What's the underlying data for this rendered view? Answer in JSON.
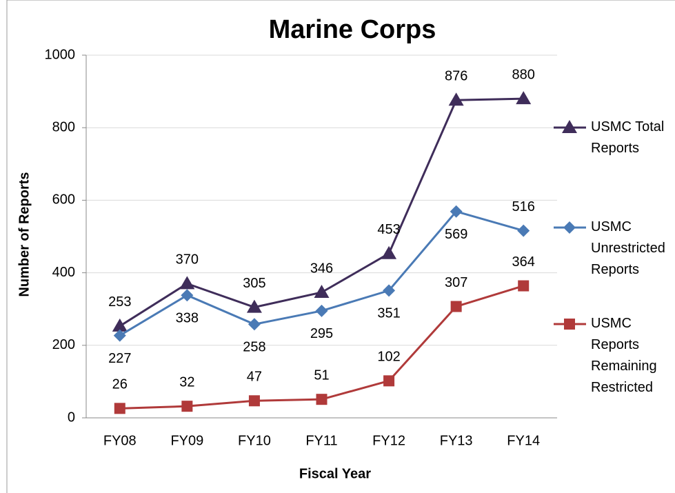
{
  "chart_data": {
    "type": "line",
    "title": "Marine Corps",
    "x_label": "Fiscal Year",
    "y_label": "Number of Reports",
    "categories": [
      "FY08",
      "FY09",
      "FY10",
      "FY11",
      "FY12",
      "FY13",
      "FY14"
    ],
    "series": [
      {
        "name": "USMC Total Reports",
        "color": "#3f2d5a",
        "marker": "triangle",
        "values": [
          253,
          370,
          305,
          346,
          453,
          876,
          880
        ]
      },
      {
        "name": "USMC Unrestricted Reports",
        "color": "#4a7ab5",
        "marker": "diamond",
        "values": [
          227,
          338,
          258,
          295,
          351,
          569,
          516
        ]
      },
      {
        "name": "USMC Reports Remaining Restricted",
        "color": "#b03a3a",
        "marker": "square",
        "values": [
          26,
          32,
          47,
          51,
          102,
          307,
          364
        ]
      }
    ],
    "ylim": [
      0,
      1000
    ],
    "yticks": [
      0,
      200,
      400,
      600,
      800,
      1000
    ],
    "grid": true,
    "legend": "right"
  }
}
